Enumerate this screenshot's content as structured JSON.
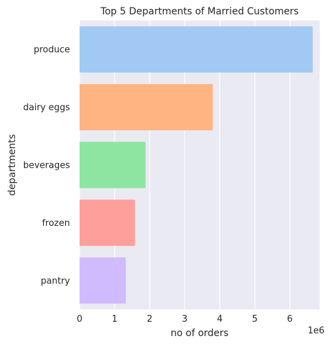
{
  "chart_data": {
    "type": "bar",
    "orientation": "horizontal",
    "title": "Top 5 Departments of Married Customers",
    "xlabel": "no of orders",
    "ylabel": "departments",
    "x_scale_note": "1e6",
    "categories": [
      "produce",
      "dairy eggs",
      "beverages",
      "frozen",
      "pantry"
    ],
    "values": [
      6.65,
      3.8,
      1.88,
      1.58,
      1.32
    ],
    "value_multiplier": 1000000,
    "xlim": [
      0,
      6.85
    ],
    "x_ticks": [
      "0",
      "1",
      "2",
      "3",
      "4",
      "5",
      "6"
    ],
    "grid": true,
    "legend": "none",
    "colors": [
      "#a1c9f4",
      "#ffb482",
      "#8de5a1",
      "#ff9f9b",
      "#d0bbff"
    ],
    "background_color": "#eaeaf2",
    "grid_color": "#ffffff"
  }
}
